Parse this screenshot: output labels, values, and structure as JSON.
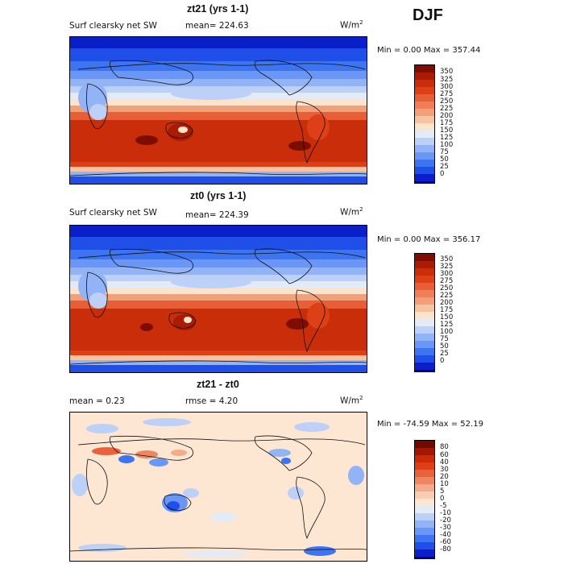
{
  "season": "DJF",
  "colors": {
    "absolute": [
      "#08007a",
      "#0a1fc9",
      "#1f4fe8",
      "#3d74f2",
      "#6a96f7",
      "#93b3f7",
      "#bdd0f7",
      "#e3ebf7",
      "#fbe3cc",
      "#f6c3a3",
      "#f2a07a",
      "#ee7f58",
      "#e85e36",
      "#dd3f16",
      "#c92d0a",
      "#a91b02",
      "#7d0d00"
    ],
    "difference": [
      "#08007a",
      "#0a1fc9",
      "#1f4fe8",
      "#3d74f2",
      "#6a96f7",
      "#93b3f7",
      "#bdd0f7",
      "#e3ebf7",
      "#fde6d2",
      "#f9cdb1",
      "#f4ab8a",
      "#ef8662",
      "#e9623b",
      "#df3f17",
      "#c92a07",
      "#a11702",
      "#6f0a00"
    ]
  },
  "panels": [
    {
      "title": "zt21 (yrs 1-1)",
      "variable": "Surf clearsky net SW",
      "mean": "mean= 224.63",
      "units": "W/m",
      "units_sup": "2",
      "minmax": "Min =    0.00 Max = 357.44",
      "colorbar_labels": [
        "350",
        "325",
        "300",
        "275",
        "250",
        "225",
        "200",
        "175",
        "150",
        "125",
        "100",
        "75",
        "50",
        "25",
        "0"
      ]
    },
    {
      "title": "zt0 (yrs 1-1)",
      "variable": "Surf clearsky net SW",
      "mean": "mean= 224.39",
      "units": "W/m",
      "units_sup": "2",
      "minmax": "Min =    0.00 Max = 356.17",
      "colorbar_labels": [
        "350",
        "325",
        "300",
        "275",
        "250",
        "225",
        "200",
        "175",
        "150",
        "125",
        "100",
        "75",
        "50",
        "25",
        "0"
      ]
    },
    {
      "title": "zt21 - zt0",
      "mean": "mean =    0.23",
      "rmse": "rmse =    4.20",
      "units": "W/m",
      "units_sup": "2",
      "minmax": "Min = -74.59 Max =  52.19",
      "colorbar_labels": [
        "80",
        "60",
        "40",
        "30",
        "20",
        "10",
        "5",
        "0",
        "-5",
        "-10",
        "-20",
        "-30",
        "-40",
        "-60",
        "-80"
      ]
    }
  ]
}
